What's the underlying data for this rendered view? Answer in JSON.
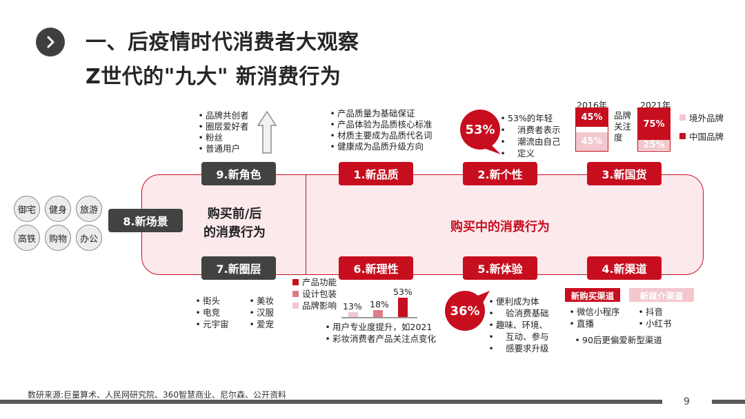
{
  "header": {
    "title_line1": "一、后疫情时代消费者大观察",
    "title_line2": "Z世代的\"九大\" 新消费行为"
  },
  "center": {
    "pre_post_line1": "购买前/后",
    "pre_post_line2": "的消费行为",
    "during": "购买中的消费行为"
  },
  "labels": {
    "new_scene": "8.新场景",
    "new_role": "9.新角色",
    "new_circle": "7.新圈层",
    "new_quality": "1.新品质",
    "new_personality": "2.新个性",
    "new_domestic": "3.新国货",
    "new_rational": "6.新理性",
    "new_experience": "5.新体验",
    "new_channel": "4.新渠道"
  },
  "scenes": [
    "御宅",
    "健身",
    "旅游",
    "高铁",
    "购物",
    "办公"
  ],
  "role_items": [
    "品牌共创者",
    "圈层爱好者",
    "粉丝",
    "普通用户"
  ],
  "quality_items": [
    "产品质量为基础保证",
    "产品体验为品质核心标准",
    "材质主要成为品质代名词",
    "健康成为品质升级方向"
  ],
  "personality": {
    "pct": "53%",
    "text": [
      "53%的年轻",
      "消费者表示",
      "潮流由自己",
      "定义"
    ]
  },
  "domestic": {
    "year1": "2016年",
    "year2": "2021年",
    "label": [
      "品牌",
      "关注",
      "度"
    ],
    "y2016_china": "45%",
    "y2016_foreign": "45%",
    "y2021_china": "75%",
    "y2021_foreign": "25%",
    "values": {
      "y2016_china": 45,
      "y2016_foreign": 45,
      "y2021_china": 75,
      "y2021_foreign": 25
    },
    "legend_foreign": "境外品牌",
    "legend_china": "中国品牌",
    "colors": {
      "china": "#c70e1f",
      "foreign": "#f2c7cd"
    }
  },
  "circle_items_left": [
    "街头",
    "电竞",
    "元宇宙"
  ],
  "circle_items_right": [
    "美妆",
    "汉服",
    "爱宠"
  ],
  "rational": {
    "legend": [
      "产品功能",
      "设计包装",
      "品牌影响"
    ],
    "bar_labels": [
      "13%",
      "18%",
      "53%"
    ],
    "bar_values": [
      13,
      18,
      53
    ],
    "bar_colors": [
      "#f2c7cd",
      "#e07a87",
      "#c70e1f"
    ],
    "notes": [
      "用户专业度提升，如2021",
      "彩妆消费者产品关注点变化"
    ]
  },
  "experience": {
    "pct": "36%",
    "text": [
      "便利成为体",
      "验消费基础",
      "趣味、环境、",
      "互动、参与",
      "感要求升级"
    ]
  },
  "channel": {
    "tag_buy": "新购买渠道",
    "tag_media": "新媒介渠道",
    "buy_items": [
      "微信小程序",
      "直播"
    ],
    "media_items": [
      "抖音",
      "小红书"
    ],
    "note": "90后更偏爱新型渠道"
  },
  "footer": {
    "source": "数研来源:巨量算术、人民网研究院、360智慧商业、尼尔森、公开资料",
    "page": "9"
  }
}
